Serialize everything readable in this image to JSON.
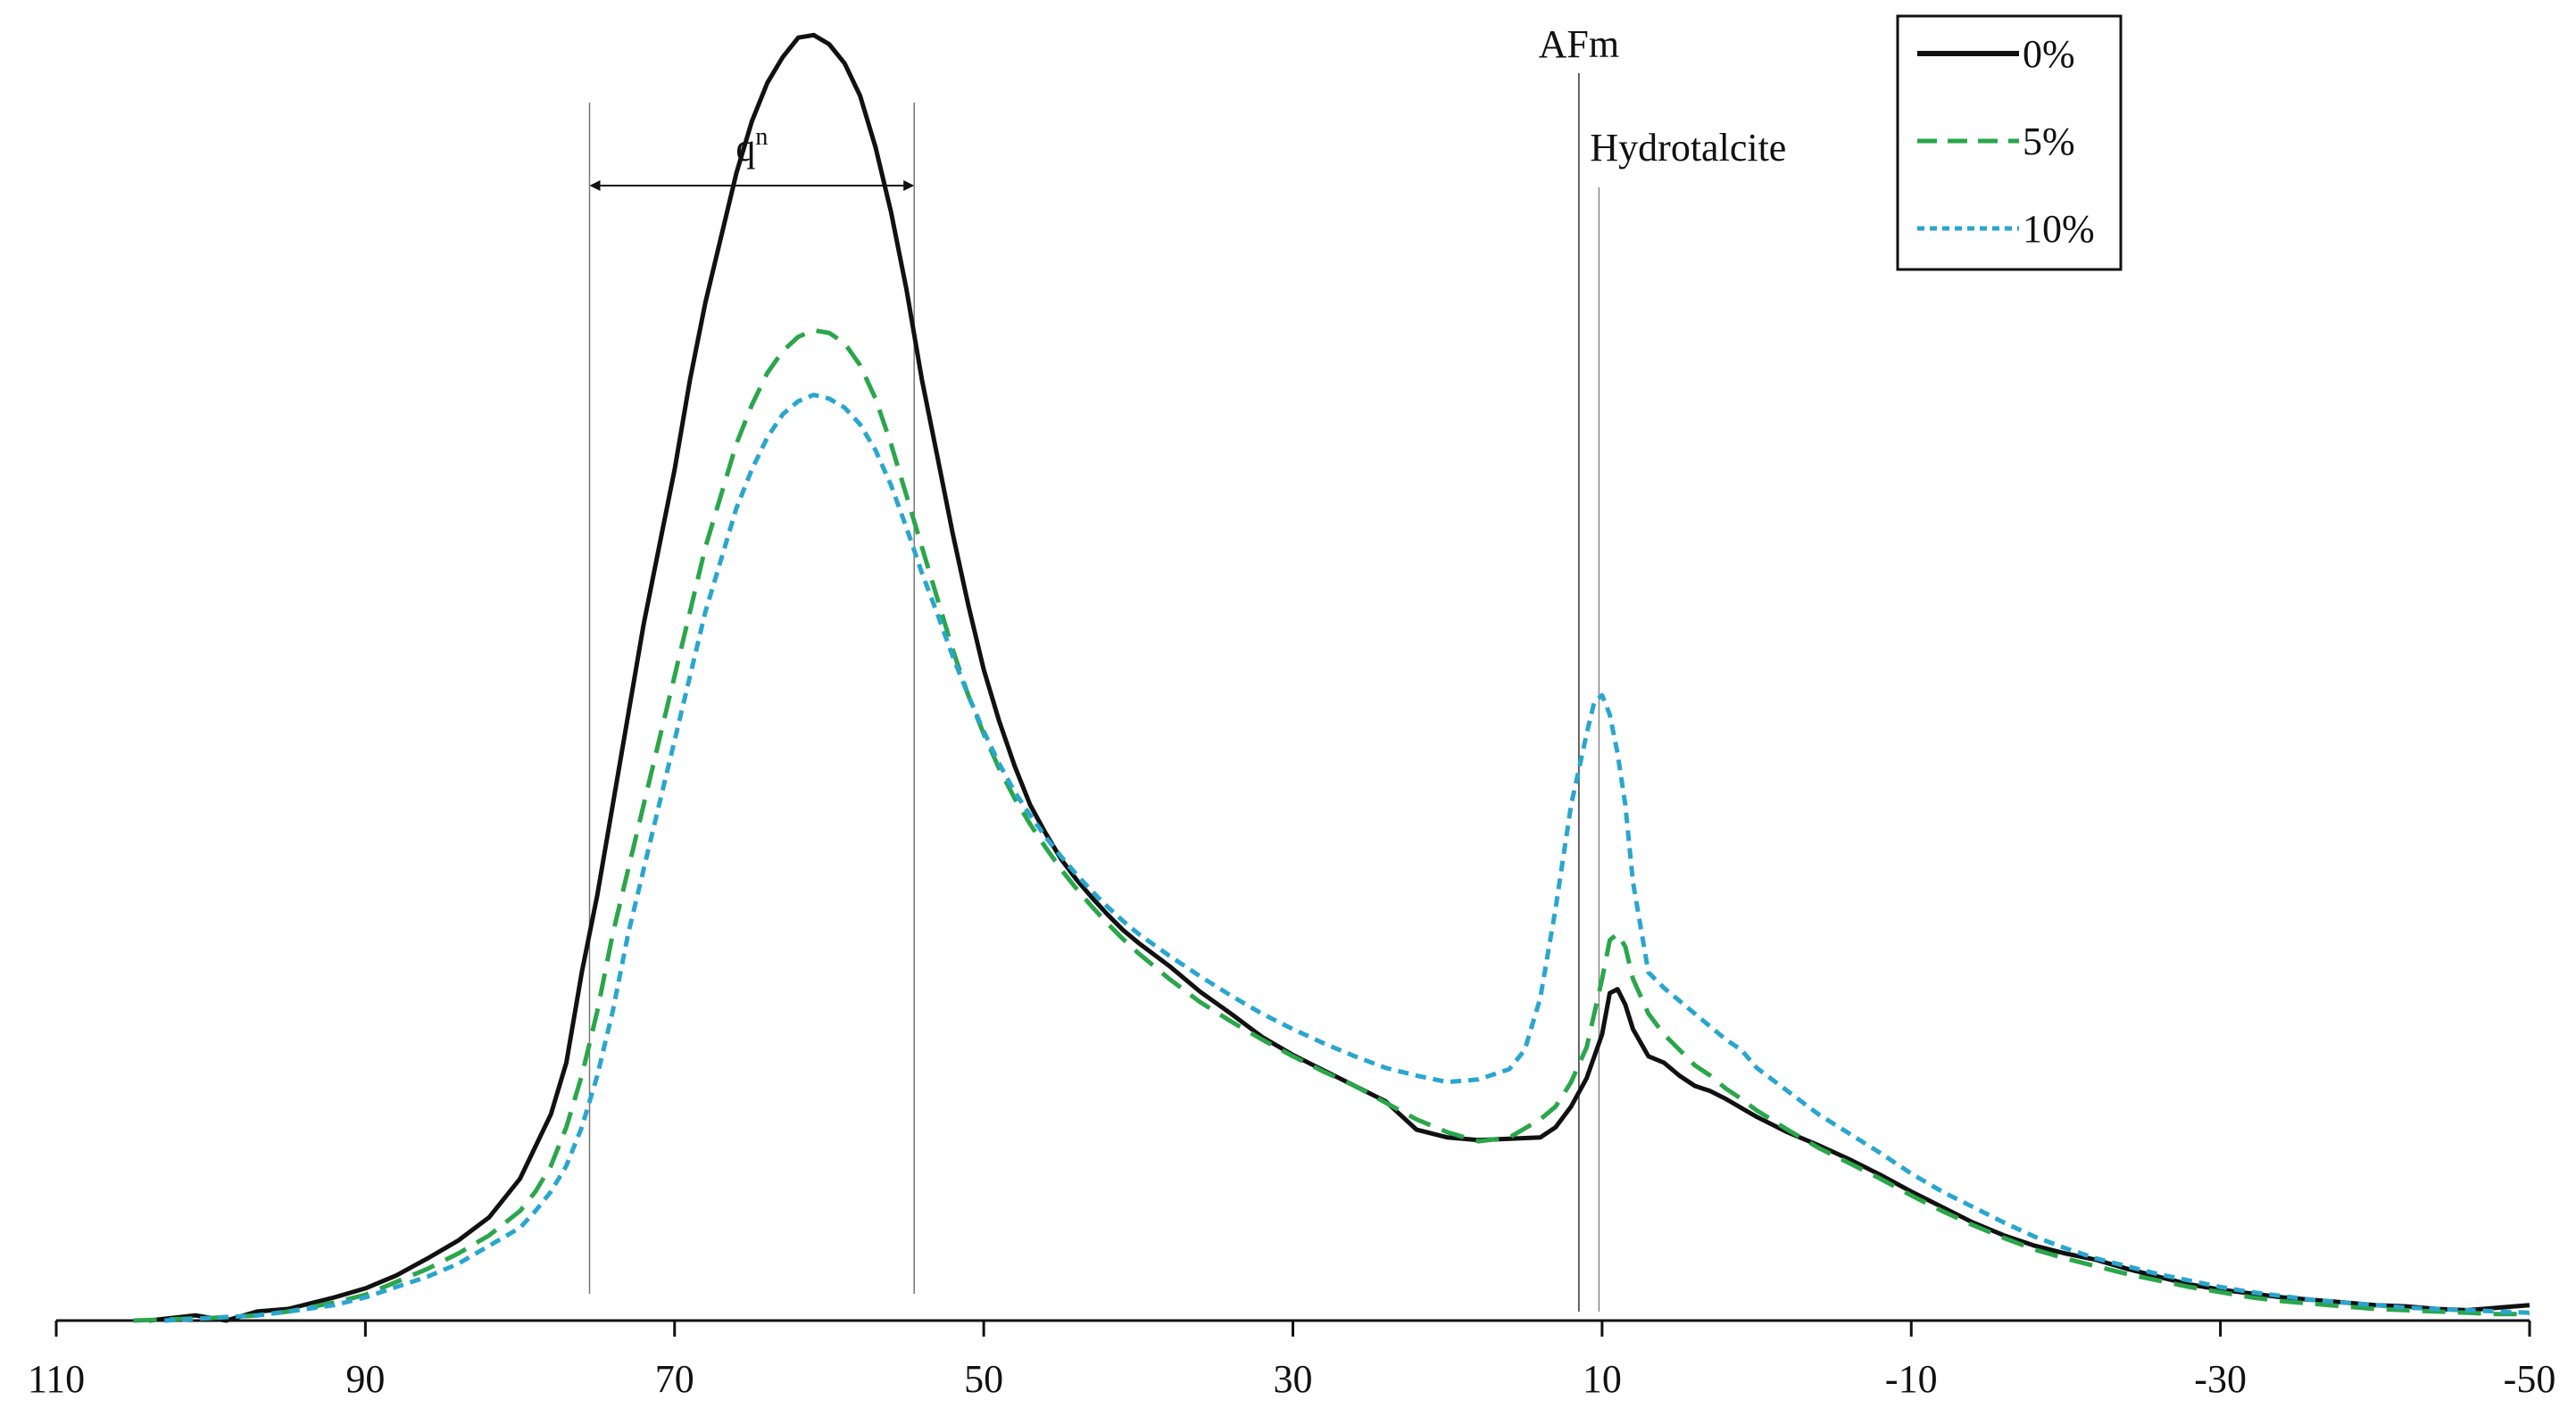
{
  "chart_data": {
    "type": "line",
    "title": "",
    "xlabel": "",
    "ylabel": "",
    "x_reversed": true,
    "xlim": [
      110,
      -50
    ],
    "ylim": [
      0,
      1.0
    ],
    "xticks": [
      "110",
      "90",
      "70",
      "50",
      "30",
      "10",
      "-10",
      "-30",
      "-50"
    ],
    "xtick_values": [
      110,
      90,
      70,
      50,
      30,
      10,
      -10,
      -30,
      -50
    ],
    "grid": false,
    "legend_position": "top-right",
    "series": [
      {
        "name": "0%",
        "color": "#111111",
        "style": "solid",
        "points": [
          [
            104,
            0.0
          ],
          [
            101,
            0.004
          ],
          [
            99,
            0.0
          ],
          [
            97,
            0.007
          ],
          [
            95,
            0.009
          ],
          [
            92,
            0.018
          ],
          [
            90,
            0.025
          ],
          [
            88,
            0.035
          ],
          [
            86,
            0.048
          ],
          [
            84,
            0.062
          ],
          [
            82,
            0.08
          ],
          [
            80,
            0.11
          ],
          [
            78,
            0.16
          ],
          [
            77,
            0.2
          ],
          [
            76,
            0.27
          ],
          [
            75,
            0.33
          ],
          [
            74,
            0.4
          ],
          [
            73,
            0.47
          ],
          [
            72,
            0.54
          ],
          [
            71,
            0.6
          ],
          [
            70,
            0.66
          ],
          [
            69,
            0.73
          ],
          [
            68,
            0.79
          ],
          [
            67,
            0.84
          ],
          [
            66,
            0.89
          ],
          [
            65,
            0.93
          ],
          [
            64,
            0.96
          ],
          [
            63,
            0.98
          ],
          [
            62,
            0.995
          ],
          [
            61,
            0.997
          ],
          [
            60,
            0.99
          ],
          [
            59,
            0.975
          ],
          [
            58,
            0.95
          ],
          [
            57,
            0.91
          ],
          [
            56,
            0.86
          ],
          [
            55,
            0.8
          ],
          [
            54,
            0.73
          ],
          [
            53,
            0.67
          ],
          [
            52,
            0.61
          ],
          [
            51,
            0.555
          ],
          [
            50,
            0.505
          ],
          [
            49,
            0.465
          ],
          [
            48,
            0.43
          ],
          [
            47,
            0.4
          ],
          [
            46,
            0.378
          ],
          [
            45,
            0.358
          ],
          [
            44,
            0.342
          ],
          [
            43,
            0.328
          ],
          [
            42,
            0.315
          ],
          [
            41,
            0.303
          ],
          [
            40,
            0.293
          ],
          [
            38,
            0.275
          ],
          [
            36,
            0.255
          ],
          [
            34,
            0.238
          ],
          [
            32,
            0.22
          ],
          [
            30,
            0.206
          ],
          [
            28,
            0.194
          ],
          [
            26,
            0.182
          ],
          [
            24,
            0.17
          ],
          [
            22,
            0.148
          ],
          [
            20,
            0.142
          ],
          [
            18,
            0.14
          ],
          [
            16,
            0.141
          ],
          [
            14,
            0.142
          ],
          [
            13,
            0.15
          ],
          [
            12,
            0.166
          ],
          [
            11,
            0.188
          ],
          [
            10,
            0.222
          ],
          [
            9.5,
            0.254
          ],
          [
            9,
            0.257
          ],
          [
            8.5,
            0.245
          ],
          [
            8,
            0.226
          ],
          [
            7,
            0.205
          ],
          [
            6,
            0.2
          ],
          [
            5,
            0.19
          ],
          [
            4,
            0.182
          ],
          [
            3,
            0.178
          ],
          [
            2,
            0.172
          ],
          [
            1,
            0.165
          ],
          [
            0,
            0.158
          ],
          [
            -2,
            0.146
          ],
          [
            -4,
            0.136
          ],
          [
            -6,
            0.125
          ],
          [
            -8,
            0.113
          ],
          [
            -10,
            0.1
          ],
          [
            -12,
            0.088
          ],
          [
            -14,
            0.076
          ],
          [
            -16,
            0.066
          ],
          [
            -18,
            0.058
          ],
          [
            -20,
            0.052
          ],
          [
            -22,
            0.047
          ],
          [
            -24,
            0.04
          ],
          [
            -26,
            0.034
          ],
          [
            -28,
            0.028
          ],
          [
            -30,
            0.024
          ],
          [
            -32,
            0.021
          ],
          [
            -34,
            0.018
          ],
          [
            -36,
            0.016
          ],
          [
            -38,
            0.014
          ],
          [
            -40,
            0.012
          ],
          [
            -42,
            0.011
          ],
          [
            -44,
            0.009
          ],
          [
            -46,
            0.008
          ],
          [
            -48,
            0.01
          ],
          [
            -50,
            0.012
          ]
        ]
      },
      {
        "name": "5%",
        "color": "#2aa64b",
        "style": "dashed",
        "points": [
          [
            105,
            0.0
          ],
          [
            100,
            0.002
          ],
          [
            97,
            0.004
          ],
          [
            95,
            0.007
          ],
          [
            92,
            0.014
          ],
          [
            90,
            0.02
          ],
          [
            88,
            0.03
          ],
          [
            86,
            0.04
          ],
          [
            84,
            0.052
          ],
          [
            82,
            0.066
          ],
          [
            80,
            0.085
          ],
          [
            79,
            0.1
          ],
          [
            78,
            0.12
          ],
          [
            77,
            0.15
          ],
          [
            76,
            0.19
          ],
          [
            75,
            0.24
          ],
          [
            74,
            0.3
          ],
          [
            73,
            0.35
          ],
          [
            72,
            0.4
          ],
          [
            71,
            0.45
          ],
          [
            70,
            0.5
          ],
          [
            69,
            0.55
          ],
          [
            68,
            0.6
          ],
          [
            67,
            0.64
          ],
          [
            66,
            0.68
          ],
          [
            65,
            0.71
          ],
          [
            64,
            0.735
          ],
          [
            63,
            0.752
          ],
          [
            62,
            0.763
          ],
          [
            61,
            0.768
          ],
          [
            60,
            0.766
          ],
          [
            59,
            0.758
          ],
          [
            58,
            0.741
          ],
          [
            57,
            0.715
          ],
          [
            56,
            0.68
          ],
          [
            55,
            0.64
          ],
          [
            54,
            0.6
          ],
          [
            53,
            0.56
          ],
          [
            52,
            0.52
          ],
          [
            51,
            0.485
          ],
          [
            50,
            0.455
          ],
          [
            49,
            0.428
          ],
          [
            48,
            0.405
          ],
          [
            47,
            0.385
          ],
          [
            46,
            0.367
          ],
          [
            45,
            0.35
          ],
          [
            44,
            0.335
          ],
          [
            43,
            0.321
          ],
          [
            42,
            0.308
          ],
          [
            41,
            0.296
          ],
          [
            40,
            0.285
          ],
          [
            38,
            0.265
          ],
          [
            36,
            0.247
          ],
          [
            34,
            0.232
          ],
          [
            32,
            0.218
          ],
          [
            30,
            0.205
          ],
          [
            28,
            0.193
          ],
          [
            26,
            0.182
          ],
          [
            24,
            0.169
          ],
          [
            22,
            0.156
          ],
          [
            20,
            0.146
          ],
          [
            18,
            0.139
          ],
          [
            16,
            0.142
          ],
          [
            14,
            0.156
          ],
          [
            13,
            0.166
          ],
          [
            12,
            0.185
          ],
          [
            11,
            0.212
          ],
          [
            10,
            0.265
          ],
          [
            9.5,
            0.295
          ],
          [
            9,
            0.3
          ],
          [
            8.5,
            0.29
          ],
          [
            8,
            0.265
          ],
          [
            7,
            0.238
          ],
          [
            6,
            0.222
          ],
          [
            5,
            0.21
          ],
          [
            4,
            0.198
          ],
          [
            3,
            0.19
          ],
          [
            2,
            0.18
          ],
          [
            1,
            0.172
          ],
          [
            0,
            0.163
          ],
          [
            -2,
            0.148
          ],
          [
            -4,
            0.134
          ],
          [
            -6,
            0.122
          ],
          [
            -8,
            0.11
          ],
          [
            -10,
            0.097
          ],
          [
            -12,
            0.085
          ],
          [
            -14,
            0.074
          ],
          [
            -16,
            0.064
          ],
          [
            -18,
            0.055
          ],
          [
            -20,
            0.048
          ],
          [
            -22,
            0.042
          ],
          [
            -24,
            0.036
          ],
          [
            -26,
            0.031
          ],
          [
            -28,
            0.026
          ],
          [
            -30,
            0.022
          ],
          [
            -32,
            0.018
          ],
          [
            -34,
            0.015
          ],
          [
            -36,
            0.013
          ],
          [
            -38,
            0.011
          ],
          [
            -40,
            0.009
          ],
          [
            -42,
            0.008
          ],
          [
            -44,
            0.007
          ],
          [
            -46,
            0.006
          ],
          [
            -48,
            0.005
          ],
          [
            -50,
            0.005
          ]
        ]
      },
      {
        "name": "10%",
        "color": "#29a6cf",
        "style": "dotted",
        "points": [
          [
            103,
            0.0
          ],
          [
            100,
            0.002
          ],
          [
            97,
            0.004
          ],
          [
            95,
            0.007
          ],
          [
            92,
            0.012
          ],
          [
            90,
            0.018
          ],
          [
            88,
            0.026
          ],
          [
            86,
            0.034
          ],
          [
            84,
            0.044
          ],
          [
            82,
            0.058
          ],
          [
            80,
            0.072
          ],
          [
            79,
            0.085
          ],
          [
            78,
            0.1
          ],
          [
            77,
            0.12
          ],
          [
            76,
            0.15
          ],
          [
            75,
            0.19
          ],
          [
            74,
            0.24
          ],
          [
            73,
            0.3
          ],
          [
            72,
            0.35
          ],
          [
            71,
            0.4
          ],
          [
            70,
            0.45
          ],
          [
            69,
            0.5
          ],
          [
            68,
            0.55
          ],
          [
            67,
            0.59
          ],
          [
            66,
            0.63
          ],
          [
            65,
            0.66
          ],
          [
            64,
            0.685
          ],
          [
            63,
            0.703
          ],
          [
            62,
            0.713
          ],
          [
            61,
            0.718
          ],
          [
            60,
            0.715
          ],
          [
            59,
            0.708
          ],
          [
            58,
            0.695
          ],
          [
            57,
            0.675
          ],
          [
            56,
            0.648
          ],
          [
            55,
            0.615
          ],
          [
            54,
            0.58
          ],
          [
            53,
            0.548
          ],
          [
            52,
            0.515
          ],
          [
            51,
            0.485
          ],
          [
            50,
            0.457
          ],
          [
            49,
            0.432
          ],
          [
            48,
            0.41
          ],
          [
            47,
            0.392
          ],
          [
            46,
            0.375
          ],
          [
            45,
            0.36
          ],
          [
            44,
            0.346
          ],
          [
            43,
            0.333
          ],
          [
            42,
            0.321
          ],
          [
            41,
            0.31
          ],
          [
            40,
            0.3
          ],
          [
            38,
            0.283
          ],
          [
            36,
            0.267
          ],
          [
            34,
            0.252
          ],
          [
            32,
            0.238
          ],
          [
            30,
            0.226
          ],
          [
            28,
            0.215
          ],
          [
            26,
            0.205
          ],
          [
            24,
            0.196
          ],
          [
            22,
            0.19
          ],
          [
            20,
            0.185
          ],
          [
            18,
            0.187
          ],
          [
            16,
            0.195
          ],
          [
            15,
            0.21
          ],
          [
            14,
            0.25
          ],
          [
            13,
            0.32
          ],
          [
            12,
            0.4
          ],
          [
            11,
            0.455
          ],
          [
            10.5,
            0.48
          ],
          [
            10,
            0.485
          ],
          [
            9.5,
            0.47
          ],
          [
            9,
            0.44
          ],
          [
            8.5,
            0.4
          ],
          [
            8,
            0.34
          ],
          [
            7,
            0.27
          ],
          [
            6,
            0.258
          ],
          [
            5,
            0.248
          ],
          [
            4,
            0.238
          ],
          [
            3,
            0.228
          ],
          [
            2,
            0.218
          ],
          [
            1,
            0.21
          ],
          [
            0,
            0.196
          ],
          [
            -2,
            0.178
          ],
          [
            -4,
            0.16
          ],
          [
            -6,
            0.145
          ],
          [
            -8,
            0.13
          ],
          [
            -10,
            0.114
          ],
          [
            -12,
            0.1
          ],
          [
            -14,
            0.088
          ],
          [
            -16,
            0.076
          ],
          [
            -18,
            0.065
          ],
          [
            -20,
            0.056
          ],
          [
            -22,
            0.048
          ],
          [
            -24,
            0.042
          ],
          [
            -26,
            0.036
          ],
          [
            -28,
            0.031
          ],
          [
            -30,
            0.026
          ],
          [
            -32,
            0.022
          ],
          [
            -34,
            0.019
          ],
          [
            -36,
            0.016
          ],
          [
            -38,
            0.014
          ],
          [
            -40,
            0.012
          ],
          [
            -42,
            0.01
          ],
          [
            -44,
            0.009
          ],
          [
            -46,
            0.008
          ],
          [
            -48,
            0.007
          ],
          [
            -50,
            0.006
          ]
        ]
      }
    ],
    "annotations": [
      {
        "text": "q",
        "sup": "n",
        "type": "range",
        "x_from": 75.5,
        "x_to": 54.5
      },
      {
        "text": "AFm",
        "type": "vline",
        "x": 11.5
      },
      {
        "text": "Hydrotalcite",
        "type": "vline",
        "x": 10.2
      }
    ]
  }
}
